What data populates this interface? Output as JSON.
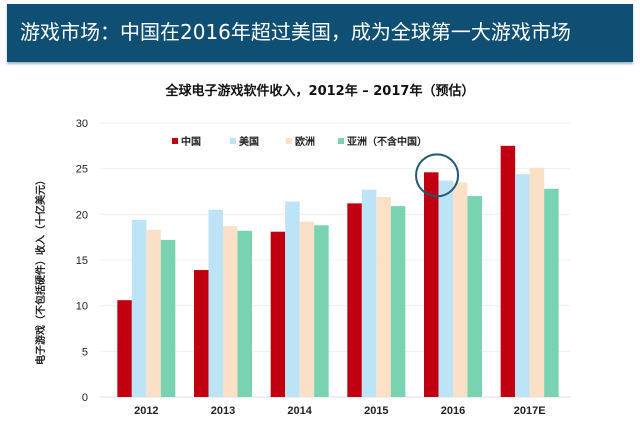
{
  "header": {
    "title": "游戏市场：中国在2016年超过美国，成为全球第一大游戏市场",
    "background_color": "#0f4f73"
  },
  "chart_data": {
    "type": "bar",
    "title": "全球电子游戏软件收入，2012年 – 2017年（预估）",
    "ylabel": "电子游戏（不包括硬件）收入（十亿美元）",
    "xlabel": "",
    "ylim": [
      0,
      30
    ],
    "yticks": [
      0,
      5,
      10,
      15,
      20,
      25,
      30
    ],
    "grid": true,
    "legend_placement": "top",
    "categories": [
      "2012",
      "2013",
      "2014",
      "2015",
      "2016",
      "2017E"
    ],
    "series": [
      {
        "name": "中国",
        "color": "#c00010",
        "values": [
          10.6,
          13.9,
          18.1,
          21.2,
          24.6,
          27.5
        ]
      },
      {
        "name": "美国",
        "color": "#bde3f7",
        "values": [
          19.4,
          20.5,
          21.4,
          22.7,
          23.7,
          24.4
        ]
      },
      {
        "name": "欧洲",
        "color": "#fbe0c8",
        "values": [
          18.3,
          18.7,
          19.2,
          21.9,
          23.5,
          25.1
        ]
      },
      {
        "name": "亚洲（不含中国）",
        "color": "#79d3b0",
        "values": [
          17.2,
          18.2,
          18.8,
          20.9,
          22.0,
          22.8
        ]
      }
    ],
    "annotation": {
      "type": "circle",
      "category": "2016",
      "color": "#1d5a78"
    }
  }
}
